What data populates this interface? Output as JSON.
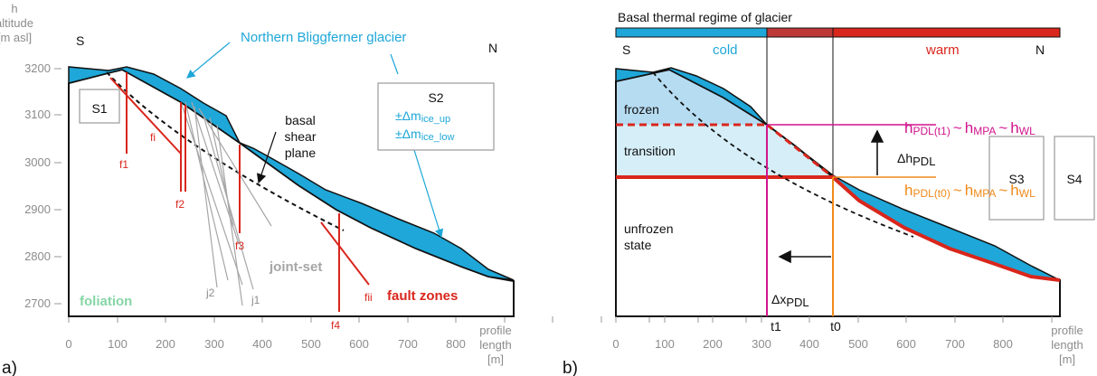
{
  "panel_a": {
    "panel_letter": "a)",
    "y_axis_title": [
      "h",
      "altitude",
      "[m asl]"
    ],
    "y_ticks": [
      "3200",
      "3100",
      "3000",
      "2900",
      "2800",
      "2700"
    ],
    "x_ticks": [
      "0",
      "100",
      "200",
      "300",
      "400",
      "500",
      "600",
      "700",
      "800"
    ],
    "x_axis_title": [
      "profile",
      "length",
      "[m]"
    ],
    "south": "S",
    "north": "N",
    "glacier_name": "Northern Bliggferner glacier",
    "s1": "S1",
    "s2": {
      "title": "S2",
      "line1": "±Δm",
      "line1_sub": "ice_up",
      "line2": "±Δm",
      "line2_sub": "ice_low"
    },
    "shear_plane": [
      "basal",
      "shear",
      "plane"
    ],
    "faults": [
      "f1",
      "fi",
      "f2",
      "f3",
      "f4",
      "fii"
    ],
    "joints": [
      "j2",
      "j1"
    ],
    "joint_set": "joint-set",
    "foliation": "foliation",
    "fault_zones": "fault zones"
  },
  "panel_b": {
    "panel_letter": "b)",
    "regime_title": "Basal thermal regime of glacier",
    "cold": "cold",
    "warm": "warm",
    "south": "S",
    "north": "N",
    "frozen": "frozen",
    "transition": "transition",
    "unfrozen": [
      "unfrozen",
      "state"
    ],
    "h_t1": {
      "h": "h",
      "pdl": "PDL(t1)",
      "tilde1": "~",
      "h2": "h",
      "mpa": "MPA",
      "tilde2": "~",
      "h3": "h",
      "wl": "WL"
    },
    "h_t0": {
      "h": "h",
      "pdl": "PDL(t0)",
      "tilde1": "~",
      "h2": "h",
      "mpa": "MPA",
      "tilde2": "~",
      "h3": "h",
      "wl": "WL"
    },
    "delta_h": "Δh",
    "delta_h_sub": "PDL",
    "delta_x": "Δx",
    "delta_x_sub": "PDL",
    "s3": "S3",
    "s4": "S4",
    "t1": "t1",
    "t0": "t0",
    "x_ticks": [
      "0",
      "100",
      "200",
      "300",
      "400",
      "500",
      "600",
      "700",
      "800"
    ],
    "x_axis_title": [
      "profile",
      "length",
      "[m]"
    ]
  },
  "colors": {
    "ice": "#1ea7d8",
    "fault": "#d9261c",
    "joint": "#a6a6a6",
    "foliation": "#86d6a6",
    "frozen": "#b6dcf2",
    "transition": "#d6eef8",
    "pdl_t1": "#d0148c",
    "pdl_t0": "#f08a1a"
  }
}
